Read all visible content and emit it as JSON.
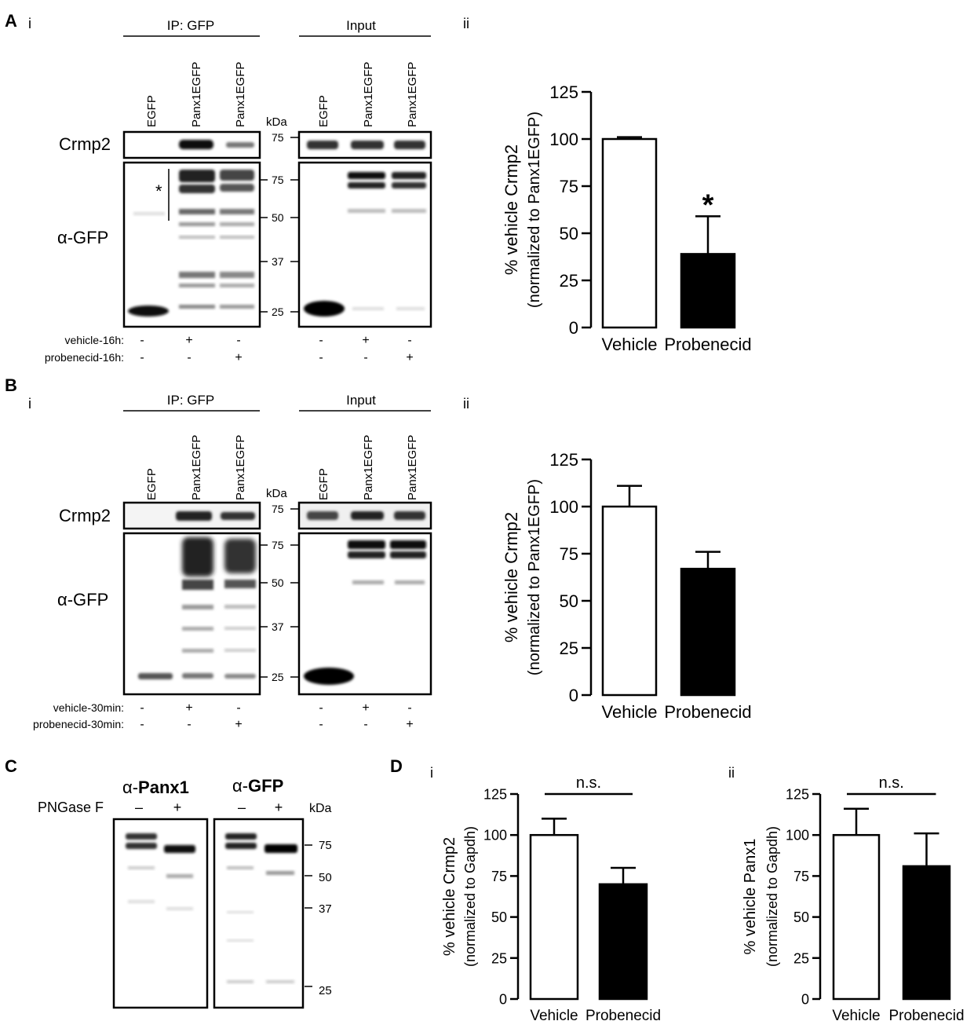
{
  "figure": {
    "panel_A": {
      "letter": "A",
      "sub_i": "i",
      "sub_ii": "ii",
      "ip_header": "IP: GFP",
      "input_header": "Input",
      "lanes": [
        "EGFP",
        "Panx1EGFP",
        "Panx1EGFP"
      ],
      "kda_label": "kDa",
      "row_labels": {
        "crmp2": "Crmp2",
        "gfp": "α-GFP"
      },
      "crmp2_marker": "75",
      "gfp_markers": [
        "75",
        "50",
        "37",
        "25"
      ],
      "asterisk": "*",
      "treatment_rows": [
        {
          "label": "vehicle-16h:",
          "signs": [
            "-",
            "+",
            "-"
          ]
        },
        {
          "label": "probenecid-16h:",
          "signs": [
            "-",
            "-",
            "+"
          ]
        }
      ]
    },
    "panel_B": {
      "letter": "B",
      "sub_i": "i",
      "sub_ii": "ii",
      "ip_header": "IP: GFP",
      "input_header": "Input",
      "lanes": [
        "EGFP",
        "Panx1EGFP",
        "Panx1EGFP"
      ],
      "kda_label": "kDa",
      "row_labels": {
        "crmp2": "Crmp2",
        "gfp": "α-GFP"
      },
      "crmp2_marker": "75",
      "gfp_markers": [
        "75",
        "50",
        "37",
        "25"
      ],
      "treatment_rows": [
        {
          "label": "vehicle-30min:",
          "signs": [
            "-",
            "+",
            "-"
          ]
        },
        {
          "label": "probenecid-30min:",
          "signs": [
            "-",
            "-",
            "+"
          ]
        }
      ]
    },
    "panel_C": {
      "letter": "C",
      "blot1_title_prefix": "α-",
      "blot1_title_bold": "Panx1",
      "blot2_title_prefix": "α-",
      "blot2_title_bold": "GFP",
      "pngase_label": "PNGase F",
      "signs": [
        "–",
        "+",
        "–",
        "+"
      ],
      "kda_label": "kDa",
      "markers": [
        "75",
        "50",
        "37",
        "25"
      ]
    },
    "panel_D": {
      "letter": "D",
      "sub_i": "i",
      "sub_ii": "ii"
    }
  },
  "chart_data": [
    {
      "id": "A-ii",
      "type": "bar",
      "categories": [
        "Vehicle",
        "Probenecid"
      ],
      "values": [
        100,
        39
      ],
      "errors": [
        1,
        20
      ],
      "fills": [
        "#ffffff",
        "#000000"
      ],
      "ylabel_line1": "% vehicle Crmp2",
      "ylabel_line2": "(normalized to Panx1EGFP)",
      "ylim": [
        0,
        125
      ],
      "yticks": [
        "0",
        "25",
        "50",
        "75",
        "100",
        "125"
      ],
      "annotation": "*"
    },
    {
      "id": "B-ii",
      "type": "bar",
      "categories": [
        "Vehicle",
        "Probenecid"
      ],
      "values": [
        100,
        67
      ],
      "errors": [
        11,
        9
      ],
      "fills": [
        "#ffffff",
        "#000000"
      ],
      "ylabel_line1": "% vehicle Crmp2",
      "ylabel_line2": "(normalized to Panx1EGFP)",
      "ylim": [
        0,
        125
      ],
      "yticks": [
        "0",
        "25",
        "50",
        "75",
        "100",
        "125"
      ]
    },
    {
      "id": "D-i",
      "type": "bar",
      "categories": [
        "Vehicle",
        "Probenecid"
      ],
      "values": [
        100,
        70
      ],
      "errors": [
        10,
        10
      ],
      "fills": [
        "#ffffff",
        "#000000"
      ],
      "ylabel_line1": "% vehicle Crmp2",
      "ylabel_line2": "(normalized to Gapdh)",
      "ylim": [
        0,
        125
      ],
      "yticks": [
        "0",
        "25",
        "50",
        "75",
        "100",
        "125"
      ],
      "annotation": "n.s."
    },
    {
      "id": "D-ii",
      "type": "bar",
      "categories": [
        "Vehicle",
        "Probenecid"
      ],
      "values": [
        100,
        81
      ],
      "errors": [
        16,
        20
      ],
      "fills": [
        "#ffffff",
        "#000000"
      ],
      "ylabel_line1": "% vehicle Panx1",
      "ylabel_line2": "(normalized to Gapdh)",
      "ylim": [
        0,
        125
      ],
      "yticks": [
        "0",
        "25",
        "50",
        "75",
        "100",
        "125"
      ],
      "annotation": "n.s."
    }
  ]
}
